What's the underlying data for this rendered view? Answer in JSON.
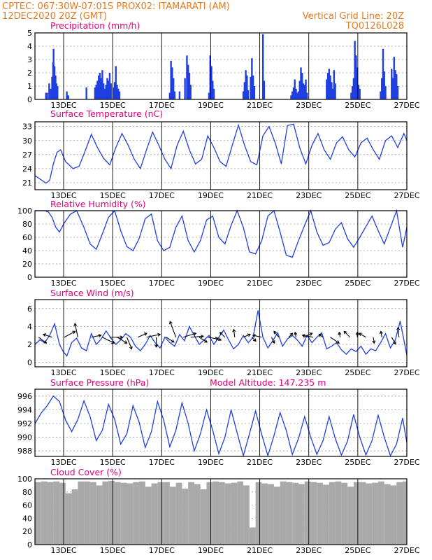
{
  "header": {
    "left_line1": "CPTEC:   067:30W-07:01S   PROX02: ITAMARATI (AM)",
    "left_line2": "12DEC2020 20Z (GMT)",
    "right_line2": "Vertical Grid Line: 20Z",
    "right_line3": "TQ0126L028"
  },
  "colors": {
    "header": "#e8791f",
    "panel_title": "#e6007e",
    "series": "#1f3fe0",
    "cloud": "#a9a9a9"
  },
  "x_axis": {
    "tick_labels": [
      "13DEC",
      "15DEC",
      "17DEC",
      "19DEC",
      "21DEC",
      "23DEC",
      "25DEC",
      "27DEC"
    ],
    "tick_days": [
      0.17,
      2.17,
      4.17,
      6.17,
      8.17,
      10.17,
      12.17,
      14.17
    ],
    "start_label": "12DEC2020 20Z",
    "range_days": [
      -1,
      14.17
    ]
  },
  "chart_data": [
    {
      "type": "bar",
      "title": "Precipitation (mm/h)",
      "ylim": [
        0,
        5
      ],
      "yticks": [
        0,
        1,
        2,
        3,
        4,
        5
      ],
      "series": [
        {
          "x": [
            -0.55,
            -0.5,
            -0.42,
            -0.35,
            -0.3,
            -0.26,
            -0.24,
            -0.2,
            -0.16,
            -0.12,
            -0.08,
            0.3,
            0.36,
            1.1,
            1.45,
            1.5,
            1.55,
            1.6,
            1.65,
            1.7,
            1.75,
            1.8,
            1.85,
            1.9,
            1.95,
            2.0,
            2.05,
            2.1,
            2.2,
            2.25,
            2.3,
            2.35,
            2.4,
            2.45,
            4.5,
            4.55,
            4.6,
            4.65,
            4.7,
            4.9,
            5.12,
            5.2,
            5.25,
            5.3,
            5.35,
            6.1,
            6.15,
            6.2,
            6.25,
            6.3,
            7.5,
            7.55,
            7.6,
            7.65,
            7.7,
            7.8,
            7.85,
            7.9,
            7.95,
            8.3,
            8.35,
            9.45,
            9.5,
            9.55,
            9.6,
            9.65,
            9.7,
            9.75,
            9.8,
            9.85,
            9.9,
            9.95,
            10.0,
            10.05,
            10.1,
            10.9,
            10.95,
            11.0,
            11.05,
            11.1,
            11.15,
            11.2,
            11.25,
            11.9,
            11.95,
            12.0,
            12.05,
            12.1,
            12.15,
            12.2,
            12.25,
            13.1,
            13.15,
            13.2,
            13.25,
            13.3,
            13.55,
            13.6,
            13.65,
            13.7,
            13.75,
            13.8
          ],
          "values": [
            0.5,
            0.5,
            1.2,
            0.8,
            1.7,
            2.8,
            3.8,
            2.5,
            1.8,
            1.2,
            1.0,
            0.6,
            0.3,
            0.9,
            0.9,
            1.1,
            1.4,
            1.8,
            2.0,
            1.6,
            2.2,
            1.2,
            0.8,
            1.1,
            1.6,
            1.4,
            2.0,
            1.2,
            0.9,
            1.3,
            2.5,
            1.1,
            0.8,
            0.6,
            0.5,
            2.9,
            2.4,
            1.6,
            0.6,
            0.6,
            1.6,
            3.3,
            2.6,
            2.0,
            1.1,
            0.5,
            3.3,
            2.5,
            1.4,
            0.8,
            0.6,
            1.3,
            2.2,
            1.8,
            0.7,
            1.7,
            3.1,
            1.8,
            1.0,
            4.9,
            1.4,
            0.3,
            0.6,
            0.9,
            1.5,
            0.8,
            0.5,
            0.6,
            1.4,
            2.4,
            2.0,
            1.2,
            1.1,
            1.5,
            0.5,
            1.5,
            2.0,
            2.3,
            1.8,
            1.3,
            0.8,
            2.2,
            1.2,
            0.5,
            1.0,
            1.6,
            4.4,
            3.3,
            2.4,
            1.1,
            0.8,
            0.6,
            1.6,
            3.8,
            2.1,
            1.0,
            2.3,
            1.6,
            3.2,
            2.2,
            1.9,
            1.0
          ]
        }
      ]
    },
    {
      "type": "line",
      "title": "Surface Temperature (nC)",
      "ylim": [
        19.5,
        34
      ],
      "yticks": [
        21,
        24,
        27,
        30,
        33
      ],
      "series": [
        {
          "x": [
            -1,
            -0.8,
            -0.55,
            -0.4,
            -0.25,
            -0.1,
            0.05,
            0.25,
            0.55,
            0.8,
            1.05,
            1.3,
            1.55,
            1.8,
            2.05,
            2.3,
            2.55,
            2.8,
            3.05,
            3.3,
            3.55,
            3.8,
            4.05,
            4.3,
            4.55,
            4.8,
            5.05,
            5.3,
            5.55,
            5.8,
            6.05,
            6.3,
            6.55,
            6.8,
            7.05,
            7.3,
            7.55,
            7.8,
            8.05,
            8.3,
            8.55,
            8.8,
            9.05,
            9.3,
            9.55,
            9.8,
            10.05,
            10.3,
            10.55,
            10.8,
            11.05,
            11.3,
            11.55,
            11.8,
            12.05,
            12.3,
            12.55,
            12.8,
            13.05,
            13.3,
            13.55,
            13.8,
            14.05,
            14.17
          ],
          "values": [
            22.5,
            21.8,
            20.9,
            21.5,
            25.0,
            27.5,
            28.0,
            25.5,
            24.0,
            24.5,
            27.8,
            31.3,
            28.5,
            26.2,
            24.8,
            28.5,
            31.5,
            29.0,
            26.0,
            24.0,
            28.0,
            31.8,
            29.0,
            26.0,
            24.0,
            29.0,
            32.0,
            28.0,
            25.0,
            26.0,
            31.0,
            28.5,
            25.5,
            24.5,
            29.0,
            33.3,
            29.0,
            25.5,
            24.8,
            31.0,
            33.0,
            29.5,
            25.0,
            33.2,
            33.5,
            28.5,
            25.0,
            29.0,
            31.5,
            28.0,
            26.0,
            29.5,
            30.8,
            28.0,
            26.5,
            29.5,
            30.5,
            28.0,
            26.0,
            30.0,
            31.0,
            28.5,
            31.5,
            30.0
          ]
        }
      ]
    },
    {
      "type": "line",
      "title": "Relative Humidity (%)",
      "ylim": [
        0,
        100
      ],
      "yticks": [
        0,
        20,
        40,
        60,
        80,
        100
      ],
      "series": [
        {
          "x": [
            -1,
            -0.8,
            -0.6,
            -0.45,
            -0.3,
            -0.15,
            0.0,
            0.2,
            0.45,
            0.7,
            1.0,
            1.25,
            1.5,
            1.75,
            2.0,
            2.25,
            2.5,
            2.75,
            3.0,
            3.25,
            3.5,
            3.75,
            4.0,
            4.25,
            4.5,
            4.75,
            5.0,
            5.25,
            5.5,
            5.75,
            6.0,
            6.25,
            6.5,
            6.75,
            7.0,
            7.25,
            7.5,
            7.75,
            8.0,
            8.25,
            8.5,
            8.75,
            9.0,
            9.25,
            9.5,
            9.75,
            10.0,
            10.25,
            10.5,
            10.75,
            11.0,
            11.25,
            11.5,
            11.75,
            12.0,
            12.25,
            12.5,
            12.75,
            13.0,
            13.25,
            13.5,
            13.75,
            14.0,
            14.17
          ],
          "values": [
            100,
            100,
            100,
            98,
            90,
            75,
            68,
            82,
            95,
            100,
            75,
            50,
            42,
            65,
            90,
            100,
            70,
            46,
            40,
            58,
            88,
            95,
            55,
            40,
            45,
            75,
            92,
            55,
            38,
            55,
            86,
            92,
            60,
            50,
            78,
            100,
            75,
            38,
            35,
            55,
            92,
            100,
            68,
            33,
            30,
            55,
            78,
            100,
            68,
            48,
            52,
            72,
            82,
            58,
            45,
            60,
            76,
            92,
            70,
            50,
            75,
            100,
            45,
            75
          ]
        }
      ]
    },
    {
      "type": "line",
      "title": "Surface Wind (m/s)",
      "ylim": [
        -0.5,
        7
      ],
      "yticks": [
        0,
        2,
        4,
        6
      ],
      "series": [
        {
          "x": [
            -1,
            -0.8,
            -0.6,
            -0.4,
            -0.2,
            0.0,
            0.15,
            0.3,
            0.5,
            0.7,
            0.9,
            1.1,
            1.3,
            1.5,
            1.7,
            1.9,
            2.1,
            2.3,
            2.5,
            2.7,
            2.9,
            3.1,
            3.3,
            3.5,
            3.7,
            3.9,
            4.1,
            4.3,
            4.5,
            4.7,
            4.9,
            5.1,
            5.3,
            5.5,
            5.7,
            5.9,
            6.1,
            6.3,
            6.5,
            6.7,
            6.9,
            7.1,
            7.3,
            7.5,
            7.7,
            7.9,
            8.1,
            8.3,
            8.5,
            8.7,
            8.9,
            9.1,
            9.3,
            9.5,
            9.7,
            9.9,
            10.1,
            10.3,
            10.5,
            10.7,
            10.9,
            11.1,
            11.3,
            11.5,
            11.7,
            11.9,
            12.1,
            12.3,
            12.5,
            12.7,
            12.9,
            13.1,
            13.3,
            13.5,
            13.7,
            13.9,
            14.17
          ],
          "values": [
            2.0,
            2.5,
            2.2,
            3.0,
            4.3,
            2.0,
            1.2,
            0.7,
            2.2,
            2.7,
            1.6,
            1.3,
            3.2,
            2.0,
            2.6,
            3.5,
            2.7,
            2.0,
            2.5,
            3.2,
            2.8,
            1.8,
            1.3,
            2.0,
            3.0,
            2.2,
            1.6,
            2.8,
            2.2,
            1.8,
            3.1,
            2.4,
            4.0,
            3.0,
            2.0,
            2.5,
            3.0,
            2.0,
            2.8,
            3.6,
            2.5,
            1.5,
            2.0,
            3.0,
            2.2,
            2.8,
            5.8,
            2.8,
            1.6,
            2.4,
            3.3,
            1.8,
            2.6,
            3.0,
            2.5,
            1.8,
            3.0,
            2.2,
            2.8,
            3.3,
            1.5,
            1.8,
            2.2,
            1.4,
            0.9,
            1.5,
            1.2,
            1.8,
            0.9,
            1.5,
            1.3,
            2.2,
            3.2,
            1.6,
            2.5,
            4.6,
            0.8
          ]
        }
      ],
      "vectors": {
        "x": [
          -0.85,
          -0.3,
          0.2,
          0.75,
          1.3,
          1.75,
          2.05,
          2.35,
          2.75,
          3.2,
          3.55,
          3.95,
          4.35,
          4.75,
          5.05,
          5.35,
          5.7,
          6.05,
          6.35,
          6.75,
          7.15,
          7.5,
          7.85,
          8.25,
          8.65,
          8.95,
          9.35,
          9.65,
          9.95,
          10.35,
          10.75,
          11.05,
          11.45,
          11.85,
          12.15,
          12.5,
          12.8,
          13.15,
          13.55,
          13.85
        ],
        "u": [
          0.8,
          -0.9,
          1.1,
          -0.3,
          1.0,
          1.2,
          1.3,
          1.0,
          0.5,
          0.9,
          1.4,
          0.0,
          0.8,
          -0.6,
          1.3,
          1.3,
          0.8,
          1.1,
          0.6,
          -0.5,
          -0.1,
          0.7,
          0.4,
          -0.9,
          0.3,
          -0.5,
          0.4,
          -0.1,
          0.9,
          -1.1,
          -0.4,
          0.9,
          -0.1,
          -0.6,
          0.0,
          -0.7,
          0.1,
          -0.1,
          0.4,
          -0.1
        ],
        "v": [
          -0.6,
          0.3,
          0.6,
          1.4,
          0.2,
          -0.6,
          0.0,
          -0.6,
          -1.2,
          0.4,
          0.3,
          -1.0,
          -0.5,
          1.6,
          0.4,
          0.1,
          -0.5,
          -0.2,
          -0.3,
          0.5,
          0.8,
          0.3,
          -0.4,
          0.2,
          -0.6,
          0.6,
          0.4,
          0.5,
          0.4,
          0.2,
          0.3,
          -0.6,
          0.5,
          0.6,
          0.5,
          0.4,
          -0.6,
          0.6,
          -0.7,
          1.0
        ]
      }
    },
    {
      "type": "line",
      "title": "Surface Pressure (hPa)",
      "annotation": "Model Altitude: 147.235 m",
      "ylim": [
        987.2,
        997
      ],
      "yticks": [
        988,
        990,
        992,
        994,
        996
      ],
      "series": [
        {
          "x": [
            -1,
            -0.75,
            -0.5,
            -0.25,
            0.0,
            0.25,
            0.5,
            0.75,
            1.0,
            1.25,
            1.5,
            1.75,
            2.0,
            2.25,
            2.5,
            2.75,
            3.0,
            3.25,
            3.5,
            3.75,
            4.0,
            4.25,
            4.5,
            4.75,
            5.0,
            5.25,
            5.5,
            5.75,
            6.0,
            6.25,
            6.5,
            6.75,
            7.0,
            7.25,
            7.5,
            7.75,
            8.0,
            8.25,
            8.5,
            8.75,
            9.0,
            9.25,
            9.5,
            9.75,
            10.0,
            10.25,
            10.5,
            10.75,
            11.0,
            11.25,
            11.5,
            11.75,
            12.0,
            12.25,
            12.5,
            12.75,
            13.0,
            13.25,
            13.5,
            13.75,
            14.0,
            14.17
          ],
          "values": [
            992.0,
            993.5,
            994.6,
            996.0,
            995.2,
            992.5,
            990.8,
            992.6,
            995.3,
            993.0,
            989.5,
            991.0,
            994.8,
            992.6,
            989.0,
            990.5,
            994.6,
            992.2,
            988.5,
            990.8,
            995.2,
            992.5,
            988.6,
            991.0,
            995.0,
            992.0,
            988.0,
            990.5,
            994.0,
            991.0,
            987.6,
            990.0,
            994.0,
            990.6,
            987.3,
            990.5,
            993.8,
            990.4,
            987.3,
            990.2,
            993.6,
            991.0,
            987.5,
            989.8,
            993.0,
            990.0,
            987.5,
            989.5,
            993.0,
            989.8,
            987.4,
            989.4,
            993.3,
            990.0,
            987.4,
            989.5,
            993.2,
            990.0,
            987.3,
            989.0,
            992.8,
            989.2
          ]
        }
      ]
    },
    {
      "type": "bar",
      "title": "Cloud Cover (%)",
      "ylim": [
        0,
        100
      ],
      "yticks": [
        0,
        20,
        40,
        60,
        80,
        100
      ],
      "series": [
        {
          "x": [
            -1,
            -0.75,
            -0.5,
            -0.25,
            0.0,
            0.25,
            0.5,
            0.75,
            1.0,
            1.25,
            1.5,
            1.75,
            2.0,
            2.25,
            2.5,
            2.75,
            3.0,
            3.25,
            3.5,
            3.75,
            4.0,
            4.25,
            4.5,
            4.75,
            5.0,
            5.25,
            5.5,
            5.75,
            6.0,
            6.25,
            6.5,
            6.75,
            7.0,
            7.25,
            7.5,
            7.75,
            8.0,
            8.25,
            8.5,
            8.75,
            9.0,
            9.25,
            9.5,
            9.75,
            10.0,
            10.25,
            10.5,
            10.75,
            11.0,
            11.25,
            11.5,
            11.75,
            12.0,
            12.25,
            12.5,
            12.75,
            13.0,
            13.25,
            13.5,
            13.75,
            14.0
          ],
          "values": [
            95,
            96,
            95,
            96,
            94,
            78,
            84,
            96,
            96,
            95,
            90,
            96,
            97,
            95,
            94,
            93,
            95,
            96,
            88,
            93,
            95,
            95,
            88,
            94,
            85,
            95,
            92,
            84,
            95,
            96,
            95,
            93,
            94,
            96,
            90,
            26,
            95,
            93,
            92,
            88,
            96,
            95,
            94,
            92,
            96,
            95,
            94,
            91,
            95,
            96,
            94,
            88,
            95,
            95,
            93,
            94,
            96,
            92,
            90,
            95,
            96
          ]
        }
      ]
    }
  ]
}
